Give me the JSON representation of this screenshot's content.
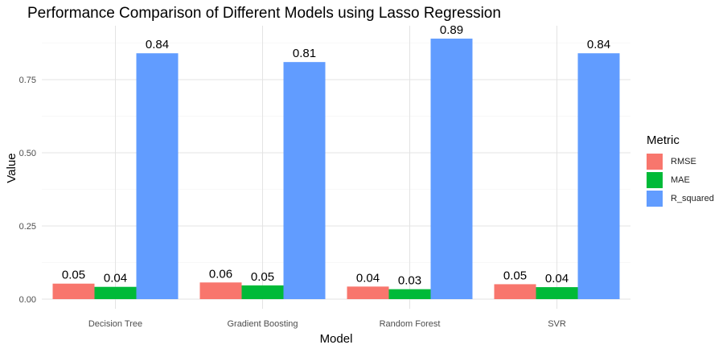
{
  "chart_data": {
    "type": "bar",
    "title": "Performance Comparison of Different Models using Lasso Regression",
    "xlabel": "Model",
    "ylabel": "Value",
    "categories": [
      "Decision Tree",
      "Gradient Boosting",
      "Random Forest",
      "SVR"
    ],
    "series": [
      {
        "name": "RMSE",
        "color": "#F8766D",
        "values": [
          0.053,
          0.057,
          0.043,
          0.051
        ],
        "labels": [
          "0.05",
          "0.06",
          "0.04",
          "0.05"
        ]
      },
      {
        "name": "MAE",
        "color": "#00BA38",
        "values": [
          0.042,
          0.047,
          0.034,
          0.041
        ],
        "labels": [
          "0.04",
          "0.05",
          "0.03",
          "0.04"
        ]
      },
      {
        "name": "R_squared",
        "color": "#619CFF",
        "values": [
          0.84,
          0.81,
          0.89,
          0.84
        ],
        "labels": [
          "0.84",
          "0.81",
          "0.89",
          "0.84"
        ]
      }
    ],
    "ylim": [
      0,
      0.9
    ],
    "yticks": [
      "0.00",
      "0.25",
      "0.50",
      "0.75"
    ],
    "legend_title": "Metric",
    "legend_position": "right",
    "grid": true
  }
}
